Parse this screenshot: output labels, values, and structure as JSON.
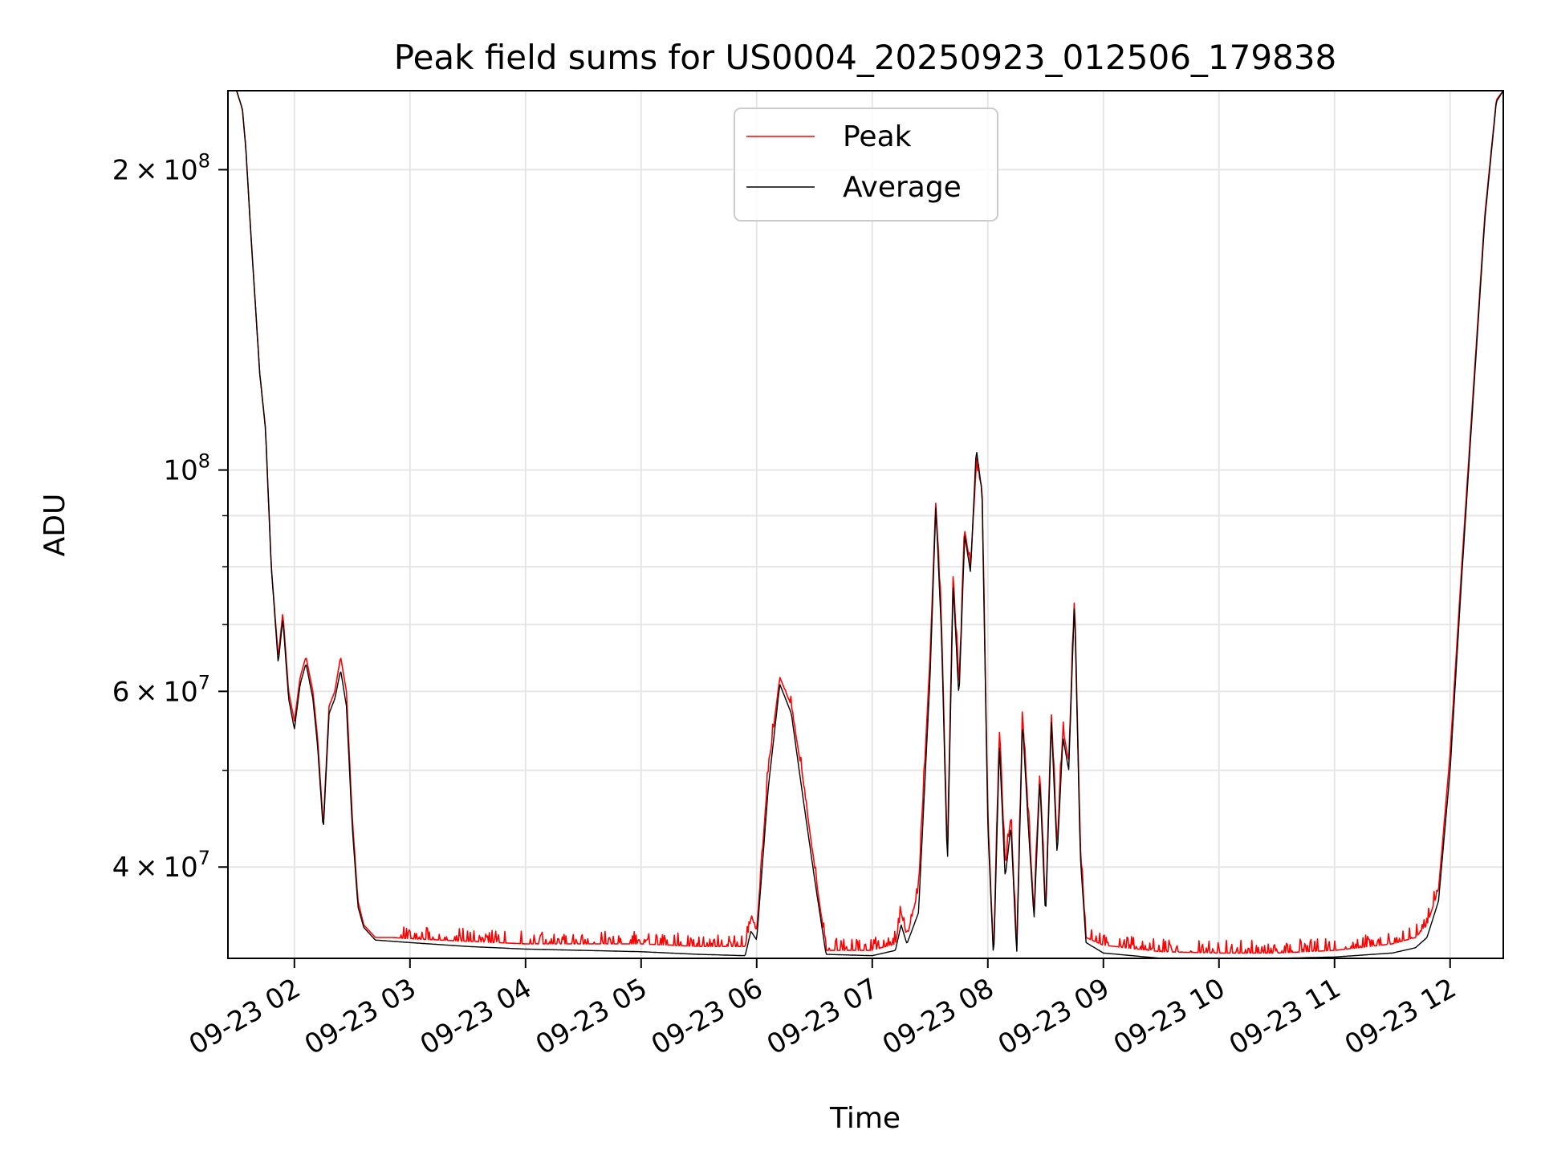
{
  "chart_data": {
    "type": "line",
    "title": "Peak field sums for US0004_20250923_012506_179838",
    "xlabel": "Time",
    "ylabel": "ADU",
    "yscale": "log",
    "ylim": [
      32400000,
      240000000
    ],
    "xlim_hours": [
      1.425,
      12.46
    ],
    "grid": true,
    "legend_position": "upper-center",
    "x_ticks": [
      {
        "value": 2,
        "label": "09-23 02"
      },
      {
        "value": 3,
        "label": "09-23 03"
      },
      {
        "value": 4,
        "label": "09-23 04"
      },
      {
        "value": 5,
        "label": "09-23 05"
      },
      {
        "value": 6,
        "label": "09-23 06"
      },
      {
        "value": 7,
        "label": "09-23 07"
      },
      {
        "value": 8,
        "label": "09-23 08"
      },
      {
        "value": 9,
        "label": "09-23 09"
      },
      {
        "value": 10,
        "label": "09-23 10"
      },
      {
        "value": 11,
        "label": "09-23 11"
      },
      {
        "value": 12,
        "label": "09-23 12"
      }
    ],
    "y_major_ticks": [
      {
        "value": 40000000,
        "mantissa": "4",
        "exponent": "7"
      },
      {
        "value": 60000000,
        "mantissa": "6",
        "exponent": "7"
      },
      {
        "value": 100000000,
        "mantissa": "",
        "exponent": "8"
      },
      {
        "value": 200000000,
        "mantissa": "2",
        "exponent": "8"
      }
    ],
    "y_minor_ticks": [
      30000000,
      50000000,
      70000000,
      80000000,
      90000000,
      300000000
    ],
    "tick_base": "10",
    "tick_times": "×",
    "series": [
      {
        "name": "Peak",
        "color": "#ff0000",
        "spike_noise_min_hours": 2.9,
        "x": [
          1.43,
          1.5,
          1.55,
          1.58,
          1.62,
          1.7,
          1.75,
          1.8,
          1.86,
          1.9,
          1.95,
          2.0,
          2.05,
          2.1,
          2.16,
          2.2,
          2.25,
          2.3,
          2.35,
          2.4,
          2.45,
          2.5,
          2.55,
          2.6,
          2.7,
          2.85,
          3.0,
          3.5,
          4.0,
          4.5,
          5.0,
          5.5,
          5.9,
          5.95,
          6.0,
          6.1,
          6.2,
          6.3,
          6.4,
          6.5,
          6.6,
          7.0,
          7.2,
          7.25,
          7.3,
          7.4,
          7.5,
          7.55,
          7.6,
          7.65,
          7.7,
          7.75,
          7.8,
          7.85,
          7.9,
          7.95,
          8.0,
          8.05,
          8.1,
          8.15,
          8.2,
          8.25,
          8.3,
          8.35,
          8.4,
          8.45,
          8.5,
          8.55,
          8.6,
          8.65,
          8.7,
          8.75,
          8.8,
          8.85,
          9.0,
          9.5,
          10.0,
          10.5,
          11.0,
          11.5,
          11.7,
          11.8,
          11.9,
          12.0,
          12.1,
          12.2,
          12.3,
          12.4,
          12.46
        ],
        "y": [
          240000000,
          240000000,
          230000000,
          210000000,
          175000000,
          125000000,
          110000000,
          80000000,
          65000000,
          72000000,
          60000000,
          56000000,
          62000000,
          65000000,
          60000000,
          54000000,
          44000000,
          58000000,
          60000000,
          65000000,
          60000000,
          45000000,
          37000000,
          35000000,
          34000000,
          34000000,
          33900000,
          33700000,
          33500000,
          33500000,
          33500000,
          33300000,
          33300000,
          35500000,
          34500000,
          50000000,
          62000000,
          58000000,
          49000000,
          40000000,
          33000000,
          33000000,
          33500000,
          36000000,
          34000000,
          38000000,
          65000000,
          93000000,
          70000000,
          41000000,
          79000000,
          60000000,
          87000000,
          80000000,
          101000000,
          96000000,
          45000000,
          32500000,
          55000000,
          40000000,
          45000000,
          33000000,
          57000000,
          45000000,
          36000000,
          50000000,
          36000000,
          57000000,
          42000000,
          55000000,
          51000000,
          75000000,
          42000000,
          34000000,
          33400000,
          32900000,
          32800000,
          32800000,
          33000000,
          33500000,
          34000000,
          35000000,
          38000000,
          52000000,
          80000000,
          120000000,
          180000000,
          235000000,
          240000000
        ]
      },
      {
        "name": "Average",
        "color": "#000000",
        "x": [
          1.43,
          1.5,
          1.55,
          1.58,
          1.62,
          1.7,
          1.75,
          1.8,
          1.86,
          1.9,
          1.95,
          2.0,
          2.05,
          2.1,
          2.16,
          2.2,
          2.25,
          2.3,
          2.35,
          2.4,
          2.45,
          2.5,
          2.55,
          2.6,
          2.7,
          2.85,
          3.0,
          3.5,
          4.0,
          4.5,
          5.0,
          5.5,
          5.9,
          5.95,
          6.0,
          6.1,
          6.2,
          6.3,
          6.4,
          6.5,
          6.6,
          7.0,
          7.2,
          7.25,
          7.3,
          7.4,
          7.5,
          7.55,
          7.6,
          7.65,
          7.7,
          7.75,
          7.8,
          7.85,
          7.9,
          7.95,
          8.0,
          8.05,
          8.1,
          8.15,
          8.2,
          8.25,
          8.3,
          8.35,
          8.4,
          8.45,
          8.5,
          8.55,
          8.6,
          8.65,
          8.7,
          8.75,
          8.8,
          8.85,
          9.0,
          9.5,
          10.0,
          10.5,
          11.0,
          11.5,
          11.7,
          11.8,
          11.9,
          12.0,
          12.1,
          12.2,
          12.3,
          12.4,
          12.46
        ],
        "y": [
          240000000,
          240000000,
          230000000,
          210000000,
          175000000,
          125000000,
          110000000,
          80000000,
          64000000,
          71000000,
          59000000,
          55000000,
          61000000,
          64000000,
          59000000,
          53000000,
          43500000,
          57000000,
          59000000,
          63000000,
          58000000,
          44000000,
          36500000,
          34800000,
          33800000,
          33700000,
          33600000,
          33300000,
          33100000,
          33000000,
          32900000,
          32700000,
          32600000,
          34500000,
          33800000,
          48000000,
          61000000,
          57000000,
          47000000,
          39000000,
          32700000,
          32600000,
          33000000,
          35000000,
          33500000,
          36000000,
          62000000,
          92000000,
          68000000,
          40000000,
          77000000,
          59000000,
          86000000,
          79000000,
          105000000,
          95000000,
          44000000,
          32200000,
          53000000,
          39000000,
          44000000,
          32600000,
          56000000,
          44000000,
          35500000,
          49000000,
          35500000,
          56000000,
          41000000,
          54000000,
          50000000,
          74000000,
          41000000,
          33600000,
          32800000,
          32400000,
          32400000,
          32400000,
          32500000,
          32800000,
          33200000,
          34000000,
          37000000,
          50000000,
          78000000,
          118000000,
          178000000,
          234000000,
          240000000
        ]
      }
    ]
  }
}
